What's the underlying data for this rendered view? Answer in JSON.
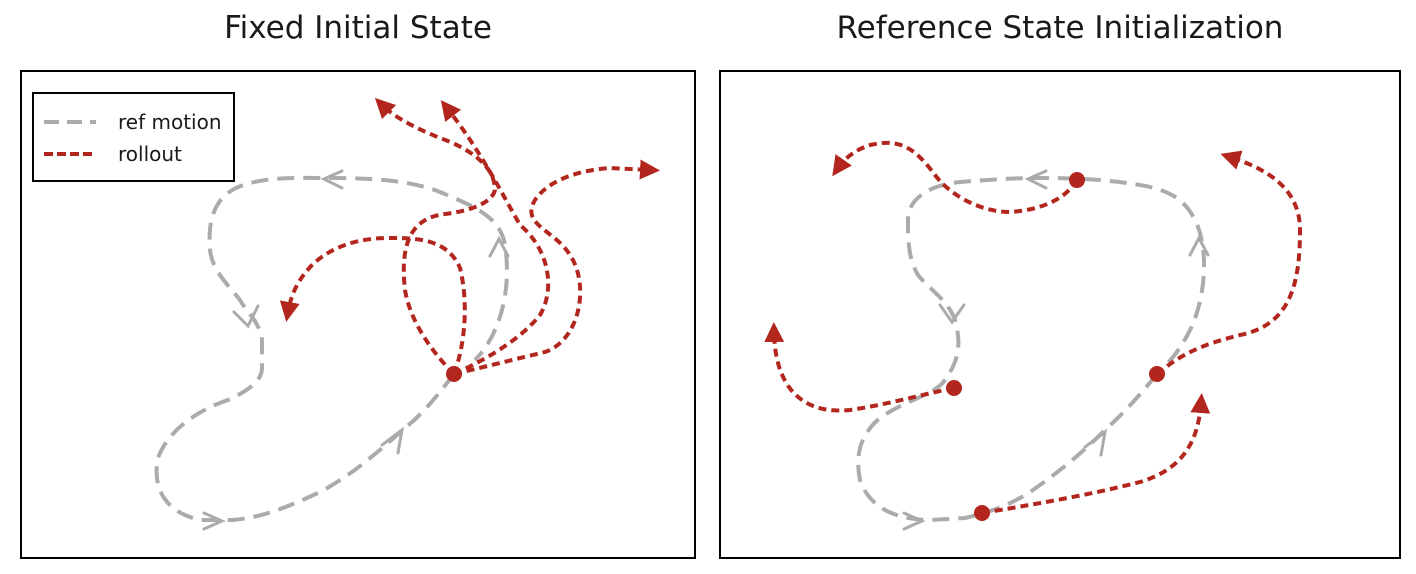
{
  "panels": [
    {
      "title": "Fixed Initial State"
    },
    {
      "title": "Reference State Initialization"
    }
  ],
  "legend": {
    "ref_label": "ref motion",
    "rollout_label": "rollout"
  },
  "colors": {
    "ref_motion": "#ababab",
    "rollout": "#b3261e",
    "frame": "#000000"
  }
}
